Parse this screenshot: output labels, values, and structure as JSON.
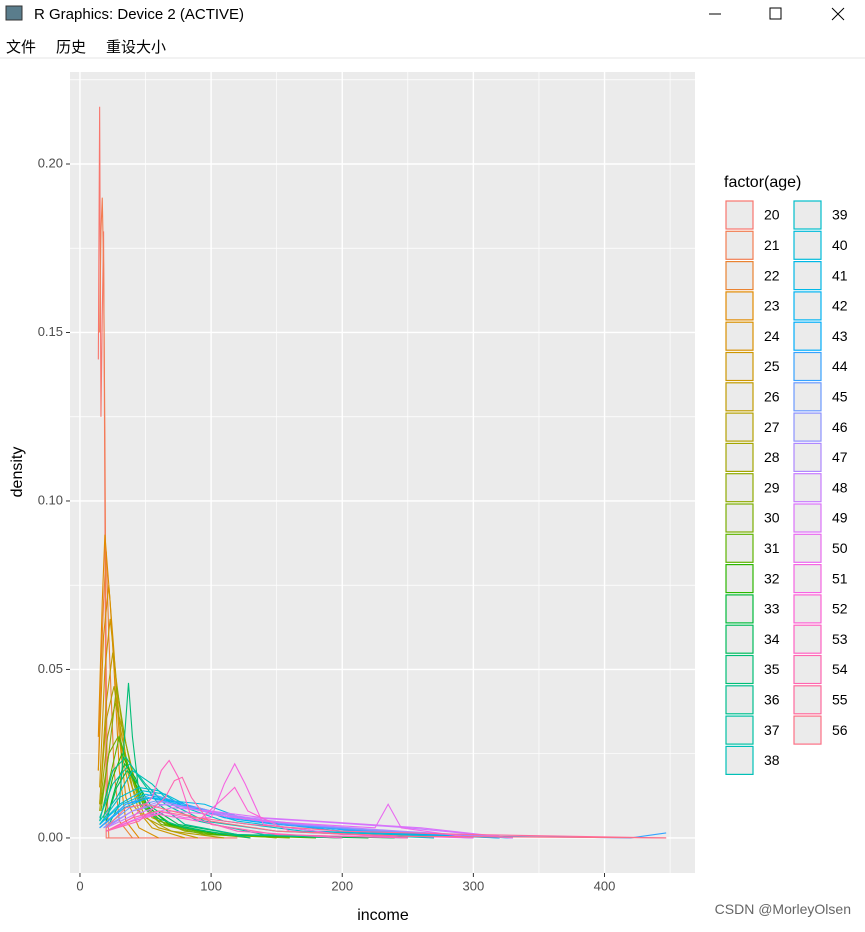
{
  "window": {
    "title": "R Graphics: Device 2 (ACTIVE)",
    "menu": [
      "文件",
      "历史",
      "重设大小"
    ]
  },
  "watermark": "CSDN @MorleyOlsen",
  "chart_data": {
    "type": "line",
    "xlabel": "income",
    "ylabel": "density",
    "legend_title": "factor(age)",
    "legend": "right",
    "grid": true,
    "xlim": [
      -7.6,
      469
    ],
    "ylim": [
      -0.0104,
      0.2273
    ],
    "xticks": [
      0,
      100,
      200,
      300,
      400
    ],
    "xminor": [
      50,
      150,
      250,
      350,
      450
    ],
    "yticks": [
      {
        "value": 0,
        "label": "0.00"
      },
      {
        "value": 0.05,
        "label": "0.05"
      },
      {
        "value": 0.1,
        "label": "0.10"
      },
      {
        "value": 0.15,
        "label": "0.15"
      },
      {
        "value": 0.2,
        "label": "0.20"
      }
    ],
    "yminor": [
      0.025,
      0.075,
      0.125,
      0.175,
      0.225
    ],
    "series": [
      {
        "name": "20",
        "color": "#F8766D",
        "x": [
          14,
          15,
          16,
          17,
          18,
          19,
          20,
          60,
          120
        ],
        "values": [
          0.142,
          0.217,
          0.125,
          0.155,
          0.18,
          0.1,
          0,
          0,
          0
        ]
      },
      {
        "name": "21",
        "color": "#F27D52",
        "x": [
          15,
          16,
          17,
          18,
          19,
          20,
          21,
          22
        ],
        "values": [
          0.15,
          0.18,
          0.19,
          0.17,
          0.12,
          0.05,
          0.01,
          0
        ]
      },
      {
        "name": "22",
        "color": "#EA8331",
        "x": [
          14,
          16,
          18,
          20,
          22,
          24,
          26,
          30,
          40
        ],
        "values": [
          0.02,
          0.05,
          0.07,
          0.085,
          0.06,
          0.04,
          0.02,
          0.005,
          0
        ]
      },
      {
        "name": "23",
        "color": "#E18A00",
        "x": [
          14,
          17,
          19,
          23,
          26,
          30,
          35,
          45
        ],
        "values": [
          0.03,
          0.07,
          0.09,
          0.07,
          0.05,
          0.02,
          0.005,
          0
        ]
      },
      {
        "name": "24",
        "color": "#D89000",
        "x": [
          14,
          18,
          22,
          26,
          30,
          35,
          45,
          60
        ],
        "values": [
          0.02,
          0.06,
          0.075,
          0.055,
          0.03,
          0.012,
          0.003,
          0
        ]
      },
      {
        "name": "25",
        "color": "#CD9600",
        "x": [
          15,
          19,
          23,
          27,
          32,
          40,
          55,
          80
        ],
        "values": [
          0.015,
          0.05,
          0.065,
          0.05,
          0.025,
          0.01,
          0.003,
          0
        ]
      },
      {
        "name": "26",
        "color": "#C09B00",
        "x": [
          15,
          20,
          25,
          30,
          36,
          45,
          60,
          90
        ],
        "values": [
          0.01,
          0.04,
          0.055,
          0.04,
          0.02,
          0.008,
          0.003,
          0
        ]
      },
      {
        "name": "27",
        "color": "#B3A000",
        "x": [
          15,
          20,
          26,
          32,
          40,
          50,
          70,
          110
        ],
        "values": [
          0.01,
          0.035,
          0.045,
          0.03,
          0.015,
          0.006,
          0.002,
          0
        ]
      },
      {
        "name": "28",
        "color": "#A3A500",
        "x": [
          15,
          21,
          27,
          34,
          42,
          55,
          80,
          130
        ],
        "values": [
          0.008,
          0.03,
          0.04,
          0.03,
          0.015,
          0.006,
          0.002,
          0
        ]
      },
      {
        "name": "29",
        "color": "#8FAA00",
        "x": [
          16,
          22,
          28,
          35,
          45,
          60,
          90,
          150
        ],
        "values": [
          0.008,
          0.025,
          0.045,
          0.028,
          0.012,
          0.005,
          0.002,
          0
        ]
      },
      {
        "name": "30",
        "color": "#7AAE00",
        "x": [
          16,
          22,
          29,
          36,
          46,
          62,
          95,
          160
        ],
        "values": [
          0.01,
          0.025,
          0.03,
          0.022,
          0.01,
          0.004,
          0.001,
          0
        ]
      },
      {
        "name": "31",
        "color": "#5EB300",
        "x": [
          17,
          24,
          30,
          38,
          48,
          65,
          100,
          180
        ],
        "values": [
          0.008,
          0.02,
          0.03,
          0.02,
          0.01,
          0.004,
          0.001,
          0
        ]
      },
      {
        "name": "32",
        "color": "#2CB600",
        "x": [
          18,
          25,
          32,
          40,
          50,
          68,
          105,
          200
        ],
        "values": [
          0.006,
          0.018,
          0.025,
          0.018,
          0.01,
          0.004,
          0.001,
          0
        ]
      },
      {
        "name": "33",
        "color": "#00B938",
        "x": [
          20,
          27,
          34,
          42,
          52,
          70,
          110,
          220
        ],
        "values": [
          0.005,
          0.015,
          0.022,
          0.018,
          0.009,
          0.004,
          0.001,
          0
        ]
      },
      {
        "name": "34",
        "color": "#00BB5A",
        "x": [
          20,
          28,
          36,
          44,
          55,
          75,
          120,
          240
        ],
        "values": [
          0.005,
          0.015,
          0.02,
          0.016,
          0.009,
          0.004,
          0.001,
          0
        ]
      },
      {
        "name": "35",
        "color": "#00BD76",
        "x": [
          22,
          30,
          34,
          37,
          40,
          46,
          58,
          80,
          130
        ],
        "values": [
          0.004,
          0.01,
          0.03,
          0.046,
          0.03,
          0.01,
          0.006,
          0.003,
          0
        ]
      },
      {
        "name": "36",
        "color": "#00BF8E",
        "x": [
          15,
          25,
          35,
          45,
          60,
          80,
          120,
          200
        ],
        "values": [
          0.005,
          0.02,
          0.024,
          0.018,
          0.01,
          0.004,
          0.001,
          0
        ]
      },
      {
        "name": "37",
        "color": "#00C0A3",
        "x": [
          15,
          25,
          38,
          50,
          65,
          90,
          140,
          250
        ],
        "values": [
          0.006,
          0.016,
          0.022,
          0.016,
          0.01,
          0.005,
          0.001,
          0
        ]
      },
      {
        "name": "38",
        "color": "#00C0B7",
        "x": [
          15,
          28,
          40,
          55,
          70,
          95,
          150,
          270
        ],
        "values": [
          0.005,
          0.012,
          0.02,
          0.016,
          0.01,
          0.005,
          0.002,
          0
        ]
      },
      {
        "name": "39",
        "color": "#00BECA",
        "x": [
          15,
          30,
          45,
          60,
          80,
          110,
          170,
          300
        ],
        "values": [
          0.004,
          0.012,
          0.015,
          0.014,
          0.009,
          0.005,
          0.002,
          0
        ]
      },
      {
        "name": "40",
        "color": "#00BCDA",
        "x": [
          15,
          30,
          48,
          65,
          85,
          120,
          180,
          320
        ],
        "values": [
          0.004,
          0.01,
          0.014,
          0.013,
          0.009,
          0.005,
          0.002,
          0
        ]
      },
      {
        "name": "41",
        "color": "#00B8E7",
        "x": [
          15,
          32,
          50,
          70,
          95,
          130,
          200,
          330
        ],
        "values": [
          0.004,
          0.01,
          0.013,
          0.011,
          0.01,
          0.005,
          0.002,
          0
        ]
      },
      {
        "name": "42",
        "color": "#00B3F2",
        "x": [
          15,
          34,
          52,
          75,
          100,
          140,
          210,
          330
        ],
        "values": [
          0.003,
          0.009,
          0.012,
          0.01,
          0.008,
          0.005,
          0.002,
          0
        ]
      },
      {
        "name": "43",
        "color": "#00ADFA",
        "x": [
          15,
          35,
          55,
          80,
          110,
          150,
          220,
          320
        ],
        "values": [
          0.003,
          0.01,
          0.012,
          0.01,
          0.006,
          0.004,
          0.002,
          0
        ]
      },
      {
        "name": "44",
        "color": "#35A2FF",
        "x": [
          15,
          35,
          55,
          80,
          110,
          150,
          220,
          320,
          420,
          447
        ],
        "values": [
          0.003,
          0.01,
          0.013,
          0.01,
          0.007,
          0.004,
          0.002,
          0.0005,
          0,
          0.0015
        ]
      },
      {
        "name": "45",
        "color": "#6B9AFF",
        "x": [
          18,
          38,
          58,
          85,
          115,
          160,
          230,
          330
        ],
        "values": [
          0.003,
          0.009,
          0.011,
          0.009,
          0.006,
          0.004,
          0.002,
          0
        ]
      },
      {
        "name": "46",
        "color": "#8D92FF",
        "x": [
          18,
          40,
          60,
          90,
          120,
          165,
          240,
          330
        ],
        "values": [
          0.003,
          0.008,
          0.01,
          0.009,
          0.006,
          0.004,
          0.002,
          0
        ]
      },
      {
        "name": "47",
        "color": "#AE87FF",
        "x": [
          20,
          40,
          62,
          92,
          125,
          170,
          245,
          330
        ],
        "values": [
          0.003,
          0.008,
          0.011,
          0.008,
          0.006,
          0.004,
          0.002,
          0
        ]
      },
      {
        "name": "48",
        "color": "#C77CFF",
        "x": [
          20,
          42,
          65,
          95,
          130,
          175,
          250,
          330
        ],
        "values": [
          0.003,
          0.007,
          0.01,
          0.008,
          0.006,
          0.005,
          0.003,
          0
        ]
      },
      {
        "name": "49",
        "color": "#DB72FB",
        "x": [
          20,
          45,
          70,
          100,
          140,
          180,
          220,
          260,
          330
        ],
        "values": [
          0.002,
          0.006,
          0.009,
          0.008,
          0.006,
          0.005,
          0.004,
          0.003,
          0
        ]
      },
      {
        "name": "50",
        "color": "#E96AF0",
        "x": [
          20,
          45,
          70,
          100,
          140,
          180,
          225,
          235,
          245,
          300
        ],
        "values": [
          0.002,
          0.006,
          0.008,
          0.007,
          0.005,
          0.004,
          0.003,
          0.01,
          0.003,
          0
        ]
      },
      {
        "name": "51",
        "color": "#F564E3",
        "x": [
          20,
          40,
          60,
          80,
          100,
          110,
          118,
          126,
          140,
          200,
          300
        ],
        "values": [
          0.002,
          0.006,
          0.008,
          0.006,
          0.006,
          0.016,
          0.022,
          0.016,
          0.004,
          0.001,
          0
        ]
      },
      {
        "name": "52",
        "color": "#FC61D4",
        "x": [
          20,
          40,
          60,
          90,
          110,
          118,
          128,
          160,
          250
        ],
        "values": [
          0.002,
          0.005,
          0.007,
          0.005,
          0.012,
          0.015,
          0.008,
          0.002,
          0
        ]
      },
      {
        "name": "53",
        "color": "#FF62C3",
        "x": [
          20,
          40,
          55,
          62,
          68,
          75,
          85,
          120,
          200
        ],
        "values": [
          0.002,
          0.006,
          0.012,
          0.02,
          0.023,
          0.018,
          0.006,
          0.002,
          0
        ]
      },
      {
        "name": "54",
        "color": "#FF65B0",
        "x": [
          20,
          45,
          65,
          72,
          78,
          85,
          100,
          150,
          250
        ],
        "values": [
          0.002,
          0.005,
          0.012,
          0.017,
          0.018,
          0.012,
          0.004,
          0.001,
          0
        ]
      },
      {
        "name": "55",
        "color": "#FF699C",
        "x": [
          20,
          40,
          60,
          90,
          130,
          200,
          300,
          447
        ],
        "values": [
          0.002,
          0.006,
          0.008,
          0.006,
          0.004,
          0.002,
          0.001,
          0
        ]
      },
      {
        "name": "56",
        "color": "#FC7085",
        "x": [
          20,
          35,
          50,
          70,
          100,
          150,
          250,
          447
        ],
        "values": [
          0.003,
          0.009,
          0.01,
          0.008,
          0.005,
          0.002,
          0.0005,
          0
        ]
      }
    ]
  }
}
